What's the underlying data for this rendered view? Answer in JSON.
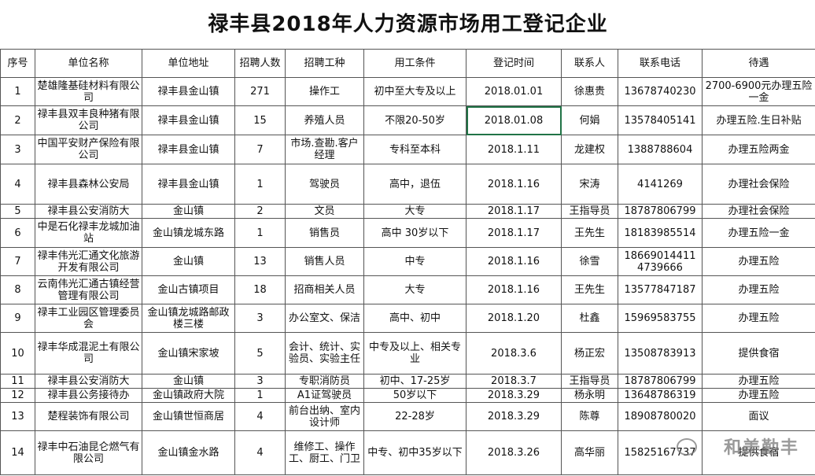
{
  "table": {
    "title": "禄丰县2018年人力资源市场用工登记企业",
    "header": [
      "序号",
      "单位名称",
      "单位地址",
      "招聘人数",
      "招聘工种",
      "用工条件",
      "登记时间",
      "联系人",
      "联系电话",
      "待遇"
    ],
    "rows": [
      [
        1,
        "楚雄隆基硅材料有限公司",
        "禄丰县金山镇",
        271,
        "操作工",
        "初中至大专及以上",
        "2018.01.01",
        "徐惠贵",
        "13678740230",
        "2700-6900元办理五险一金"
      ],
      [
        2,
        "禄丰县双丰良种猪有限公司",
        "禄丰县金山镇",
        15,
        "养殖人员",
        "不限20-50岁",
        "2018.01.08",
        "何娟",
        "13578405141",
        "办理五险.生日补贴"
      ],
      [
        3,
        "中国平安财产保险有限公司",
        "禄丰县金山镇",
        7,
        "市场.查勘.客户经理",
        "专科至本科",
        "2018.1.11",
        "龙建权",
        "1388788604",
        "办理五险两金"
      ],
      [
        4,
        "禄丰县森林公安局",
        "禄丰县金山镇",
        1,
        "驾驶员",
        "高中，退伍",
        "2018.1.16",
        "宋涛",
        "4141269",
        "办理社会保险"
      ],
      [
        5,
        "禄丰县公安消防大",
        "金山镇",
        2,
        "文员",
        "大专",
        "2018.1.17",
        "王指导员",
        "18787806799",
        "办理社会保险"
      ],
      [
        6,
        "中是石化禄丰龙城加油站",
        "金山镇龙城东路",
        1,
        "销售员",
        "高中 30岁以下",
        "2018.1.17",
        "王先生",
        "18183985514",
        "办理五险一金"
      ],
      [
        7,
        "禄丰伟光汇通文化旅游开发有限公司",
        "金山镇",
        13,
        "销售人员",
        "中专",
        "2018.1.16",
        "徐雪",
        "18669014411 4739666",
        "办理五险"
      ],
      [
        8,
        "云南伟光汇通古镇经营管理有限公司",
        "金山古镇项目",
        18,
        "招商相关人员",
        "大专",
        "2018.1.16",
        "王先生",
        "13577847187",
        "办理五险"
      ],
      [
        9,
        "禄丰工业园区管理委员会",
        "金山镇龙城路邮政楼三楼",
        3,
        "办公室文、保洁",
        "高中、初中",
        "2018.1.20",
        "杜鑫",
        "15969583755",
        "办理五险"
      ],
      [
        10,
        "禄丰华成混泥土有限公司",
        "金山镇宋家坡",
        5,
        "会计、统计、实验员、实验主任",
        "中专及以上、相关专业",
        "2018.3.6",
        "杨正宏",
        "13508783913",
        "提供食宿"
      ],
      [
        11,
        "禄丰县公安消防大",
        "金山镇",
        3,
        "专职消防员",
        "初中、17-25岁",
        "2018.3.7",
        "王指导员",
        "18787806799",
        "办理五险"
      ],
      [
        12,
        "禄丰县公务接待办",
        "金山镇政府大院",
        1,
        "A1证驾驶员",
        "50岁以下",
        "2018.3.29",
        "杨永明",
        "13648786319",
        "办理五险"
      ],
      [
        13,
        "楚程装饰有限公司",
        "金山镇世恒商居",
        4,
        "前台出纳、室内设计师",
        "22-28岁",
        "2018.3.29",
        "陈尊",
        "18908780020",
        "面议"
      ],
      [
        14,
        "禄丰中石油昆仑燃气有限公司",
        "金山镇金水路",
        4,
        "维修工、操作工、厨工、门卫",
        "中专、初中35岁以下",
        "2018.3.26",
        "高华丽",
        "15825167737",
        "提供食宿"
      ]
    ]
  },
  "watermark": "和美勤丰"
}
